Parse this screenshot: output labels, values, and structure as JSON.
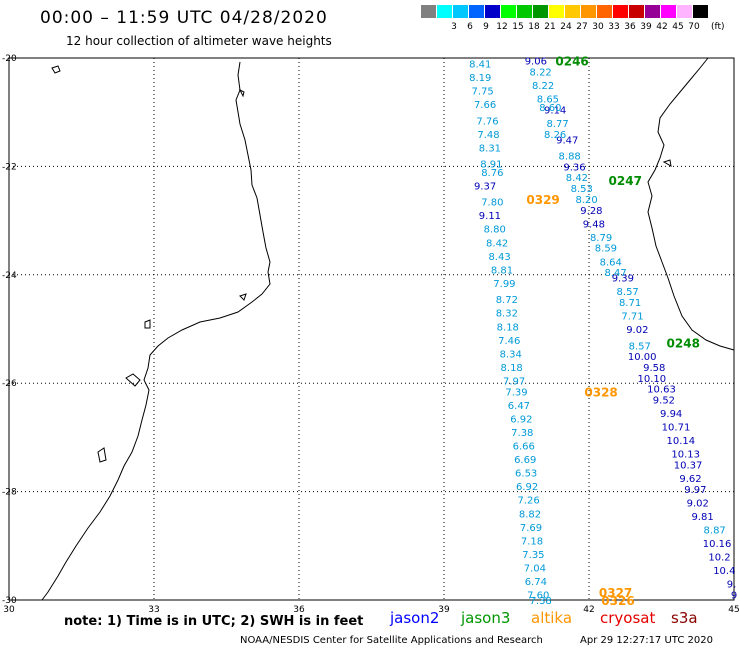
{
  "title": "00:00 – 11:59 UTC 04/28/2020",
  "subtitle": "12 hour collection of altimeter wave heights",
  "color_scale": {
    "unit": "(ft)",
    "bins": [
      {
        "label": "",
        "color": "#808080"
      },
      {
        "label": "3",
        "color": "#00ffff"
      },
      {
        "label": "6",
        "color": "#00c8ff"
      },
      {
        "label": "9",
        "color": "#0064ff"
      },
      {
        "label": "12",
        "color": "#0000c8"
      },
      {
        "label": "15",
        "color": "#00ff00"
      },
      {
        "label": "18",
        "color": "#00c800"
      },
      {
        "label": "21",
        "color": "#009600"
      },
      {
        "label": "24",
        "color": "#ffff00"
      },
      {
        "label": "27",
        "color": "#ffc800"
      },
      {
        "label": "30",
        "color": "#ff9600"
      },
      {
        "label": "33",
        "color": "#ff6400"
      },
      {
        "label": "36",
        "color": "#ff0000"
      },
      {
        "label": "39",
        "color": "#c80000"
      },
      {
        "label": "42",
        "color": "#960096"
      },
      {
        "label": "45",
        "color": "#ff00ff"
      },
      {
        "label": "70",
        "color": "#ffb4ff"
      },
      {
        "label": "",
        "color": "#000000"
      }
    ]
  },
  "axes": {
    "x_ticks": [
      "30",
      "33",
      "36",
      "39",
      "42",
      "45"
    ],
    "y_ticks": [
      "-20",
      "-22",
      "-24",
      "-26",
      "-28",
      "-30"
    ],
    "xlim": [
      30,
      45
    ],
    "ylim": [
      -30,
      -20
    ]
  },
  "tracks": [
    {
      "color": "#009ad8",
      "labels": [
        {
          "text": "8.41",
          "lon": 39.75,
          "lat": -20.1
        },
        {
          "text": "8.19",
          "lon": 39.75,
          "lat": -20.35
        },
        {
          "text": "7.75",
          "lon": 39.8,
          "lat": -20.6
        },
        {
          "text": "7.66",
          "lon": 39.85,
          "lat": -20.85
        },
        {
          "text": "7.76",
          "lon": 39.9,
          "lat": -21.15
        },
        {
          "text": "7.48",
          "lon": 39.92,
          "lat": -21.4
        },
        {
          "text": "8.31",
          "lon": 39.95,
          "lat": -21.65
        },
        {
          "text": "8.91",
          "lon": 39.98,
          "lat": -21.95
        },
        {
          "text": "8.76",
          "lon": 40.0,
          "lat": -22.1
        },
        {
          "text": "7.80",
          "lon": 40.0,
          "lat": -22.65
        },
        {
          "text": "8.80",
          "lon": 40.05,
          "lat": -23.15
        },
        {
          "text": "8.42",
          "lon": 40.1,
          "lat": -23.4
        },
        {
          "text": "8.43",
          "lon": 40.15,
          "lat": -23.65
        },
        {
          "text": "8.81",
          "lon": 40.2,
          "lat": -23.9
        },
        {
          "text": "7.99",
          "lon": 40.25,
          "lat": -24.15
        },
        {
          "text": "8.72",
          "lon": 40.3,
          "lat": -24.45
        },
        {
          "text": "8.32",
          "lon": 40.3,
          "lat": -24.7
        },
        {
          "text": "8.18",
          "lon": 40.32,
          "lat": -24.95
        },
        {
          "text": "7.46",
          "lon": 40.35,
          "lat": -25.2
        },
        {
          "text": "8.34",
          "lon": 40.38,
          "lat": -25.45
        },
        {
          "text": "8.18",
          "lon": 40.4,
          "lat": -25.7
        },
        {
          "text": "7.97",
          "lon": 40.45,
          "lat": -25.95
        },
        {
          "text": "7.39",
          "lon": 40.5,
          "lat": -26.15
        },
        {
          "text": "6.47",
          "lon": 40.55,
          "lat": -26.4
        },
        {
          "text": "6.92",
          "lon": 40.6,
          "lat": -26.65
        },
        {
          "text": "7.38",
          "lon": 40.62,
          "lat": -26.9
        },
        {
          "text": "6.66",
          "lon": 40.65,
          "lat": -27.15
        },
        {
          "text": "6.69",
          "lon": 40.68,
          "lat": -27.4
        },
        {
          "text": "6.53",
          "lon": 40.7,
          "lat": -27.65
        },
        {
          "text": "6.92",
          "lon": 40.72,
          "lat": -27.9
        },
        {
          "text": "7.26",
          "lon": 40.75,
          "lat": -28.15
        },
        {
          "text": "8.82",
          "lon": 40.78,
          "lat": -28.4
        },
        {
          "text": "7.69",
          "lon": 40.8,
          "lat": -28.65
        },
        {
          "text": "7.18",
          "lon": 40.82,
          "lat": -28.9
        },
        {
          "text": "7.35",
          "lon": 40.85,
          "lat": -29.15
        },
        {
          "text": "7.04",
          "lon": 40.88,
          "lat": -29.4
        },
        {
          "text": "6.74",
          "lon": 40.9,
          "lat": -29.65
        },
        {
          "text": "7.60",
          "lon": 40.95,
          "lat": -29.9
        },
        {
          "text": "7.38",
          "lon": 41.0,
          "lat": -30.0
        }
      ]
    },
    {
      "color": "#0000b4",
      "labels": [
        {
          "text": "9.37",
          "lon": 39.85,
          "lat": -22.35
        },
        {
          "text": "9.11",
          "lon": 39.95,
          "lat": -22.9
        }
      ]
    },
    {
      "color": "#0000b4",
      "labels": [
        {
          "text": "9.06",
          "lon": 40.9,
          "lat": -20.05
        },
        {
          "text": "9.14",
          "lon": 41.3,
          "lat": -20.95
        },
        {
          "text": "9.47",
          "lon": 41.55,
          "lat": -21.5
        },
        {
          "text": "9.36",
          "lon": 41.7,
          "lat": -22.0
        },
        {
          "text": "9.28",
          "lon": 42.05,
          "lat": -22.8
        },
        {
          "text": "9.48",
          "lon": 42.1,
          "lat": -23.05
        },
        {
          "text": "9.39",
          "lon": 42.7,
          "lat": -24.05
        },
        {
          "text": "9.02",
          "lon": 43.0,
          "lat": -25.0
        },
        {
          "text": "10.00",
          "lon": 43.1,
          "lat": -25.5
        },
        {
          "text": "9.58",
          "lon": 43.35,
          "lat": -25.7
        },
        {
          "text": "10.10",
          "lon": 43.3,
          "lat": -25.9
        },
        {
          "text": "10.63",
          "lon": 43.5,
          "lat": -26.1
        },
        {
          "text": "9.52",
          "lon": 43.55,
          "lat": -26.3
        },
        {
          "text": "9.94",
          "lon": 43.7,
          "lat": -26.55
        },
        {
          "text": "10.71",
          "lon": 43.8,
          "lat": -26.8
        },
        {
          "text": "10.14",
          "lon": 43.9,
          "lat": -27.05
        },
        {
          "text": "10.13",
          "lon": 44.0,
          "lat": -27.3
        },
        {
          "text": "10.37",
          "lon": 44.05,
          "lat": -27.5
        },
        {
          "text": "9.62",
          "lon": 44.1,
          "lat": -27.75
        },
        {
          "text": "9.97",
          "lon": 44.2,
          "lat": -27.95
        },
        {
          "text": "9.02",
          "lon": 44.25,
          "lat": -28.2
        },
        {
          "text": "9.81",
          "lon": 44.35,
          "lat": -28.45
        },
        {
          "text": "10.16",
          "lon": 44.65,
          "lat": -28.95
        },
        {
          "text": "10.2",
          "lon": 44.7,
          "lat": -29.2
        },
        {
          "text": "10.4",
          "lon": 44.8,
          "lat": -29.45
        },
        {
          "text": "9.",
          "lon": 44.95,
          "lat": -29.7
        },
        {
          "text": "9",
          "lon": 45.0,
          "lat": -29.9
        }
      ]
    },
    {
      "color": "#009ad8",
      "labels": [
        {
          "text": "8.22",
          "lon": 41.0,
          "lat": -20.25
        },
        {
          "text": "8.22",
          "lon": 41.05,
          "lat": -20.5
        },
        {
          "text": "8.65",
          "lon": 41.15,
          "lat": -20.75
        },
        {
          "text": "8.60",
          "lon": 41.2,
          "lat": -20.9
        },
        {
          "text": "8.77",
          "lon": 41.35,
          "lat": -21.2
        },
        {
          "text": "8.26",
          "lon": 41.3,
          "lat": -21.4
        },
        {
          "text": "8.88",
          "lon": 41.6,
          "lat": -21.8
        },
        {
          "text": "8.42",
          "lon": 41.75,
          "lat": -22.2
        },
        {
          "text": "8.53",
          "lon": 41.85,
          "lat": -22.4
        },
        {
          "text": "8.20",
          "lon": 41.95,
          "lat": -22.6
        },
        {
          "text": "8.79",
          "lon": 42.25,
          "lat": -23.3
        },
        {
          "text": "8.59",
          "lon": 42.35,
          "lat": -23.5
        },
        {
          "text": "8.64",
          "lon": 42.45,
          "lat": -23.75
        },
        {
          "text": "8.47",
          "lon": 42.55,
          "lat": -23.95
        },
        {
          "text": "8.57",
          "lon": 42.8,
          "lat": -24.3
        },
        {
          "text": "8.71",
          "lon": 42.85,
          "lat": -24.5
        },
        {
          "text": "7.71",
          "lon": 42.9,
          "lat": -24.75
        },
        {
          "text": "8.57",
          "lon": 43.05,
          "lat": -25.3
        },
        {
          "text": "8.87",
          "lon": 44.6,
          "lat": -28.7
        }
      ]
    }
  ],
  "pass_labels": [
    {
      "text": "0246",
      "color": "#008c00",
      "lon": 41.65,
      "lat": -20.05
    },
    {
      "text": "0247",
      "color": "#008c00",
      "lon": 42.75,
      "lat": -22.25
    },
    {
      "text": "0248",
      "color": "#008c00",
      "lon": 43.95,
      "lat": -25.25
    },
    {
      "text": "0329",
      "color": "#ff9600",
      "lon": 41.05,
      "lat": -22.6
    },
    {
      "text": "0328",
      "color": "#ff9600",
      "lon": 42.25,
      "lat": -26.15
    },
    {
      "text": "0327",
      "color": "#ff9600",
      "lon": 42.55,
      "lat": -29.85
    },
    {
      "text": "0326",
      "color": "#ff9600",
      "lon": 42.6,
      "lat": -30.0
    }
  ],
  "note": "note: 1) Time is in UTC; 2) SWH is in feet",
  "satellites": [
    {
      "name": "jason2",
      "color": "#0000ff"
    },
    {
      "name": "jason3",
      "color": "#009600"
    },
    {
      "name": "altika",
      "color": "#ff9600"
    },
    {
      "name": "cryosat",
      "color": "#e60000"
    },
    {
      "name": "s3a",
      "color": "#8c0000"
    }
  ],
  "credit": "NOAA/NESDIS Center for Satellite Applications and Research",
  "timestamp": "Apr 29 12:27:17 UTC 2020"
}
